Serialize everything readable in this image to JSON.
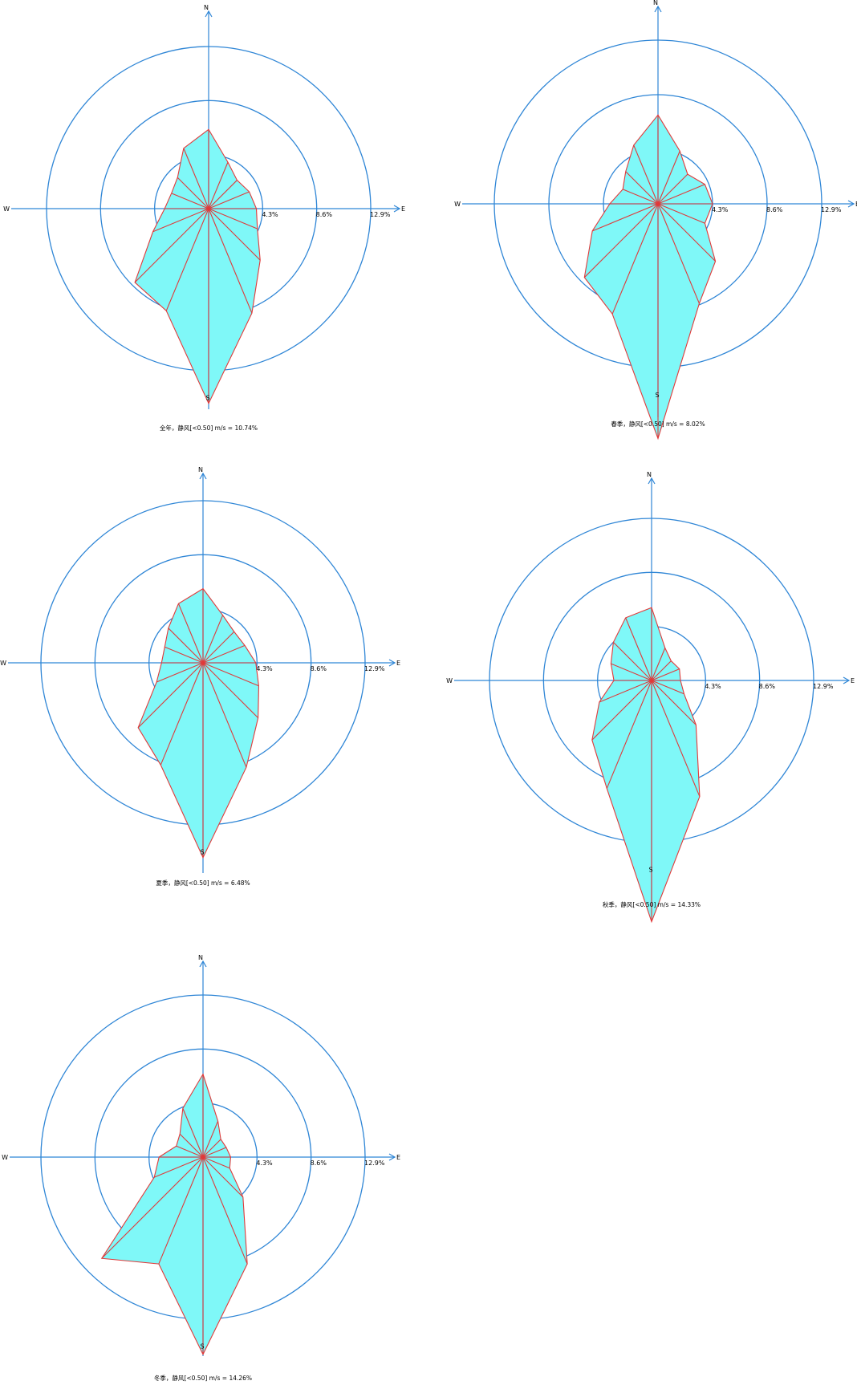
{
  "colors": {
    "rings": "#2f86d6",
    "axes": "#2f86d6",
    "fill": "#7ff8f8",
    "outline": "#e03a3a",
    "background": "#ffffff"
  },
  "directions": {
    "north": "N",
    "south": "S",
    "east": "E",
    "west": "W"
  },
  "chart_data": [
    {
      "type": "radar",
      "caption": "全年，静风[<0.50] m/s = 10.74%",
      "ring_values": [
        4.3,
        8.6,
        12.9
      ],
      "ring_labels": [
        "4.3%",
        "8.6%",
        "12.9%"
      ],
      "sectors": [
        "N",
        "NNE",
        "NE",
        "ENE",
        "E",
        "ESE",
        "SE",
        "SSE",
        "S",
        "SSW",
        "SW",
        "WSW",
        "W",
        "WNW",
        "NW",
        "NNW"
      ],
      "series": [
        {
          "values": [
            6.3,
            4.0,
            3.2,
            3.5,
            3.8,
            4.2,
            5.8,
            9.0,
            15.5,
            8.8,
            8.3,
            4.8,
            3.5,
            3.2,
            3.5,
            5.2
          ]
        }
      ]
    },
    {
      "type": "radar",
      "caption": "春季，静风[<0.50] m/s = 8.02%",
      "ring_values": [
        4.3,
        8.6,
        12.9
      ],
      "ring_labels": [
        "4.3%",
        "8.6%",
        "12.9%"
      ],
      "sectors": [
        "N",
        "NNE",
        "NE",
        "ENE",
        "E",
        "ESE",
        "SE",
        "SSE",
        "S",
        "SSW",
        "SW",
        "WSW",
        "W",
        "WNW",
        "NW",
        "NNW"
      ],
      "series": [
        {
          "values": [
            7.0,
            4.5,
            3.3,
            4.0,
            4.3,
            4.0,
            6.4,
            8.5,
            18.5,
            9.4,
            8.2,
            5.6,
            3.8,
            3.0,
            3.6,
            5.0
          ]
        }
      ]
    },
    {
      "type": "radar",
      "caption": "夏季，静风[<0.50] m/s = 6.48%",
      "ring_values": [
        4.3,
        8.6,
        12.9
      ],
      "ring_labels": [
        "4.3%",
        "8.6%",
        "12.9%"
      ],
      "sectors": [
        "N",
        "NNE",
        "NE",
        "ENE",
        "E",
        "ESE",
        "SE",
        "SSE",
        "S",
        "SSW",
        "SW",
        "WSW",
        "W",
        "WNW",
        "NW",
        "NNW"
      ],
      "series": [
        {
          "values": [
            5.9,
            4.1,
            3.5,
            3.6,
            4.2,
            4.8,
            6.2,
            9.0,
            15.5,
            8.8,
            7.3,
            4.0,
            3.3,
            3.3,
            3.9,
            5.1
          ]
        }
      ]
    },
    {
      "type": "radar",
      "caption": "秋季，静风[<0.50] m/s = 14.33%",
      "ring_values": [
        4.3,
        8.6,
        12.9
      ],
      "ring_labels": [
        "4.3%",
        "8.6%",
        "12.9%"
      ],
      "sectors": [
        "N",
        "NNE",
        "NE",
        "ENE",
        "E",
        "ESE",
        "SE",
        "SSE",
        "S",
        "SSW",
        "SW",
        "WSW",
        "W",
        "WNW",
        "NW",
        "NNW"
      ],
      "series": [
        {
          "values": [
            5.8,
            2.8,
            2.2,
            2.4,
            2.3,
            2.8,
            5.0,
            10.0,
            19.2,
            9.3,
            6.7,
            4.5,
            3.0,
            3.5,
            4.3,
            5.4
          ]
        }
      ]
    },
    {
      "type": "radar",
      "caption": "冬季，静风[<0.50] m/s = 14.26%",
      "ring_values": [
        4.3,
        8.6,
        12.9
      ],
      "ring_labels": [
        "4.3%",
        "8.6%",
        "12.9%"
      ],
      "sectors": [
        "N",
        "NNE",
        "NE",
        "ENE",
        "E",
        "ESE",
        "SE",
        "SSE",
        "S",
        "SSW",
        "SW",
        "WSW",
        "W",
        "WNW",
        "NW",
        "NNW"
      ],
      "series": [
        {
          "values": [
            6.6,
            3.1,
            2.0,
            2.0,
            2.2,
            2.3,
            4.5,
            9.2,
            15.7,
            9.2,
            11.4,
            4.2,
            3.5,
            2.3,
            2.6,
            4.2
          ]
        }
      ]
    }
  ]
}
